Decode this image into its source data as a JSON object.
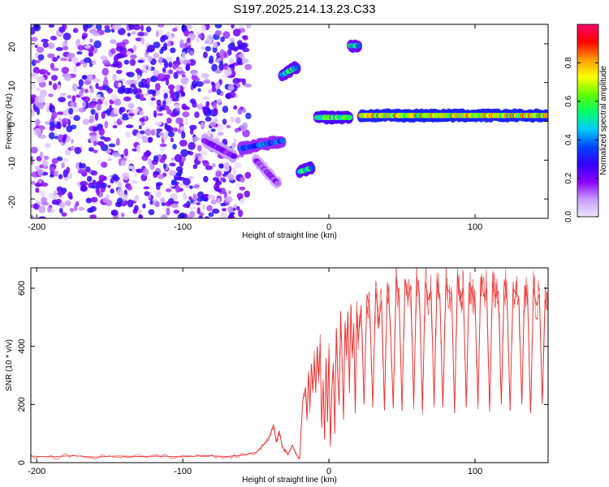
{
  "figure_title": "S197.2025.214.13.23.C33",
  "chart_data": [
    {
      "type": "heatmap",
      "xlabel": "Height of straight line (km)",
      "ylabel": "Frequency (Hz)",
      "xlim": [
        -204,
        150
      ],
      "ylim": [
        -25,
        25
      ],
      "x_ticks": [
        -200,
        -100,
        0,
        100
      ],
      "y_ticks": [
        -20,
        -10,
        0,
        10,
        20
      ],
      "colorbar": {
        "label": "Normalized spectral amplitude",
        "range": [
          0,
          1
        ],
        "ticks": [
          0.0,
          0.2,
          0.4,
          0.6,
          0.8
        ],
        "colormap": [
          "#f0e6ff",
          "#c79bff",
          "#8800ff",
          "#3300ff",
          "#0044ff",
          "#00ccff",
          "#00ff66",
          "#66ff00",
          "#ffff00",
          "#ff9900",
          "#ff0000",
          "#ff0066"
        ]
      },
      "features": [
        {
          "x": [
            -204,
            -55
          ],
          "y": [
            -25,
            25
          ],
          "amplitude": 0.15
        },
        {
          "x": [
            -85,
            -65
          ],
          "y": [
            -5,
            -9
          ],
          "amplitude": 0.25
        },
        {
          "x": [
            -60,
            -32
          ],
          "y": [
            -7,
            -5
          ],
          "amplitude": 0.45
        },
        {
          "x": [
            -50,
            -35
          ],
          "y": [
            -10,
            -16
          ],
          "amplitude": 0.2
        },
        {
          "x": [
            -32,
            -22
          ],
          "y": [
            12,
            14
          ],
          "amplitude": 0.6
        },
        {
          "x": [
            -20,
            -12
          ],
          "y": [
            -13,
            -12
          ],
          "amplitude": 0.65
        },
        {
          "x": [
            -8,
            14
          ],
          "y": [
            1,
            1
          ],
          "amplitude": 0.7
        },
        {
          "x": [
            15,
            20
          ],
          "y": [
            19.5,
            19.5
          ],
          "amplitude": 0.6
        },
        {
          "x": [
            22,
            150
          ],
          "y": [
            1.5,
            1.5
          ],
          "amplitude": 0.9
        }
      ]
    },
    {
      "type": "line",
      "xlabel": "Height of straight line (km)",
      "ylabel": "SNR (10 * v/v)",
      "xlim": [
        -204,
        150
      ],
      "ylim": [
        0,
        670
      ],
      "x_ticks": [
        -200,
        -100,
        0,
        100
      ],
      "y_ticks": [
        0,
        200,
        400,
        600
      ],
      "series": [
        {
          "color": "#ee3333",
          "x": [
            -204,
            -190,
            -175,
            -160,
            -145,
            -130,
            -115,
            -100,
            -85,
            -70,
            -60,
            -50,
            -45,
            -40,
            -38,
            -36,
            -34,
            -32,
            -30,
            -28,
            -25,
            -22,
            -20,
            -18,
            -16,
            -15,
            -14,
            -13,
            -12,
            -11,
            -10,
            -9,
            -8,
            -7,
            -6,
            -5,
            -4,
            -3,
            -2,
            -1,
            0,
            1,
            2,
            3,
            4,
            5,
            6,
            7,
            8,
            9,
            10,
            11,
            12,
            13,
            14,
            15,
            16,
            17,
            18,
            19,
            20,
            22,
            24,
            26,
            28,
            30,
            32,
            34,
            36,
            38,
            40,
            42,
            44,
            46,
            48,
            50,
            52,
            54,
            56,
            58,
            60,
            62,
            64,
            66,
            68,
            70,
            72,
            74,
            76,
            78,
            80,
            82,
            84,
            86,
            88,
            90,
            92,
            94,
            96,
            98,
            100,
            102,
            104,
            106,
            108,
            110,
            112,
            114,
            116,
            118,
            120,
            122,
            124,
            126,
            128,
            130,
            132,
            134,
            136,
            138,
            140,
            142,
            144,
            146,
            148,
            150
          ],
          "y": [
            22,
            20,
            24,
            19,
            23,
            21,
            22,
            20,
            24,
            21,
            25,
            35,
            60,
            95,
            130,
            70,
            110,
            55,
            40,
            30,
            60,
            25,
            15,
            210,
            260,
            150,
            310,
            190,
            340,
            250,
            360,
            240,
            400,
            300,
            410,
            120,
            280,
            80,
            360,
            140,
            390,
            60,
            250,
            340,
            100,
            460,
            300,
            200,
            520,
            360,
            150,
            480,
            370,
            520,
            240,
            540,
            360,
            480,
            170,
            520,
            420,
            540,
            200,
            580,
            520,
            190,
            600,
            480,
            560,
            180,
            620,
            480,
            190,
            640,
            560,
            180,
            630,
            560,
            610,
            200,
            640,
            580,
            180,
            620,
            560,
            590,
            200,
            630,
            560,
            190,
            610,
            590,
            580,
            170,
            650,
            560,
            600,
            190,
            620,
            580,
            560,
            200,
            640,
            570,
            600,
            180,
            620,
            570,
            590,
            200,
            630,
            560,
            180,
            600,
            580,
            570,
            200,
            610,
            560,
            170,
            600,
            540,
            580,
            200,
            560,
            520
          ]
        }
      ]
    }
  ]
}
